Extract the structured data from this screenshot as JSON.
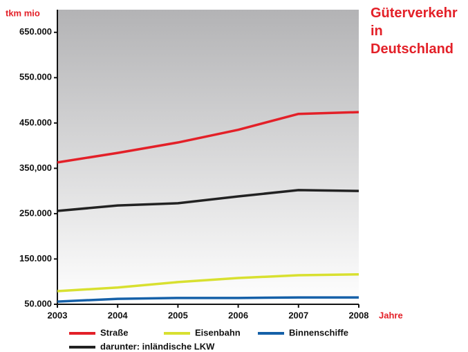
{
  "chart_data": {
    "type": "line",
    "title": "Güterverkehr in Deutschland",
    "y_label": "tkm mio",
    "x_label": "Jahre",
    "x": [
      2003,
      2004,
      2005,
      2006,
      2007,
      2008
    ],
    "xlim": [
      2003,
      2008
    ],
    "xticks": [
      2003,
      2004,
      2005,
      2006,
      2007,
      2008
    ],
    "ylim": [
      50000,
      700000
    ],
    "yticks": [
      {
        "value": 50000,
        "label": "50.000"
      },
      {
        "value": 150000,
        "label": "150.000"
      },
      {
        "value": 250000,
        "label": "250.000"
      },
      {
        "value": 350000,
        "label": "350,000"
      },
      {
        "value": 450000,
        "label": "450.000"
      },
      {
        "value": 550000,
        "label": "550.000"
      },
      {
        "value": 650000,
        "label": "650.000"
      }
    ],
    "legend": "bottom",
    "series": [
      {
        "name": "Straße",
        "color": "#e32028",
        "values": [
          363000,
          384000,
          407000,
          435000,
          470000,
          474000
        ]
      },
      {
        "name": "Eisenbahn",
        "color": "#d8e030",
        "values": [
          79000,
          87000,
          99000,
          108000,
          114000,
          116000
        ]
      },
      {
        "name": "Binnenschiffe",
        "color": "#1560a8",
        "values": [
          56000,
          62000,
          64000,
          64000,
          65000,
          65000
        ]
      },
      {
        "name": "darunter: inländische LKW",
        "color": "#222222",
        "values": [
          256000,
          268000,
          273000,
          288000,
          302000,
          300000
        ]
      }
    ]
  }
}
